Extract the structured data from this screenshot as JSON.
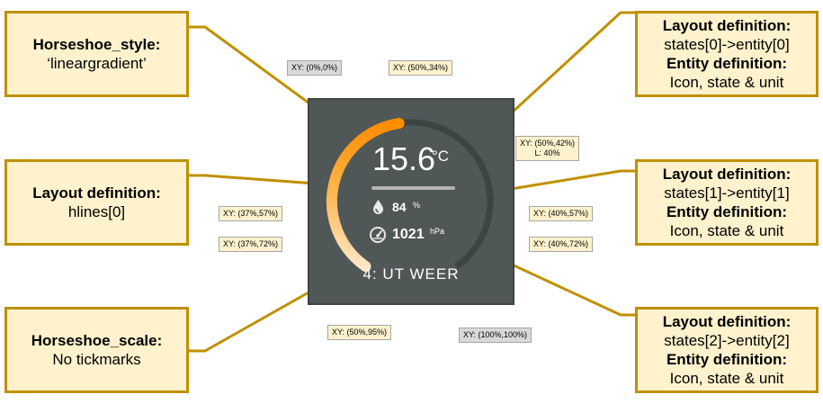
{
  "boxes": {
    "style": {
      "title": "Horseshoe_style:",
      "value": "‘lineargradient’"
    },
    "hlines": {
      "title": "Layout definition:",
      "value": "hlines[0]"
    },
    "scale": {
      "title": "Horseshoe_scale:",
      "value": "No tickmarks"
    },
    "entity0": {
      "layout_title": "Layout definition:",
      "layout_value": "states[0]->entity[0]",
      "entity_title": "Entity definition:",
      "entity_value": "Icon, state & unit"
    },
    "entity1": {
      "layout_title": "Layout definition:",
      "layout_value": "states[1]->entity[1]",
      "entity_title": "Entity definition:",
      "entity_value": "Icon, state & unit"
    },
    "entity2": {
      "layout_title": "Layout definition:",
      "layout_value": "states[2]->entity[2]",
      "entity_title": "Entity definition:",
      "entity_value": "Icon, state & unit"
    }
  },
  "card": {
    "temperature": "15.6",
    "temperature_unit": "°C",
    "humidity": "84",
    "humidity_unit": "%",
    "pressure": "1021",
    "pressure_unit": "hPa",
    "name": "4: UT WEER",
    "humidity_icon": "water-drop-icon",
    "pressure_icon": "gauge-icon",
    "gauge_fill_fraction": 0.47,
    "gradient_colors": [
      "#ff8c00",
      "#ffb347",
      "#ffe7c7"
    ],
    "track_color": "#3d4444",
    "hline_color": "#b3b3b3"
  },
  "callouts": {
    "origin": "XY: (0%,0%)",
    "state0": "XY: (50%,34%)",
    "hline_xy": "XY: (50%,42%)",
    "hline_len": "L: 40%",
    "icon1": "XY: (37%,57%)",
    "state1": "XY: (40%,57%)",
    "icon2": "XY: (37%,72%)",
    "state2": "XY: (40%,72%)",
    "name": "XY: (50%,95%)",
    "corner": "XY: (100%,100%)"
  }
}
